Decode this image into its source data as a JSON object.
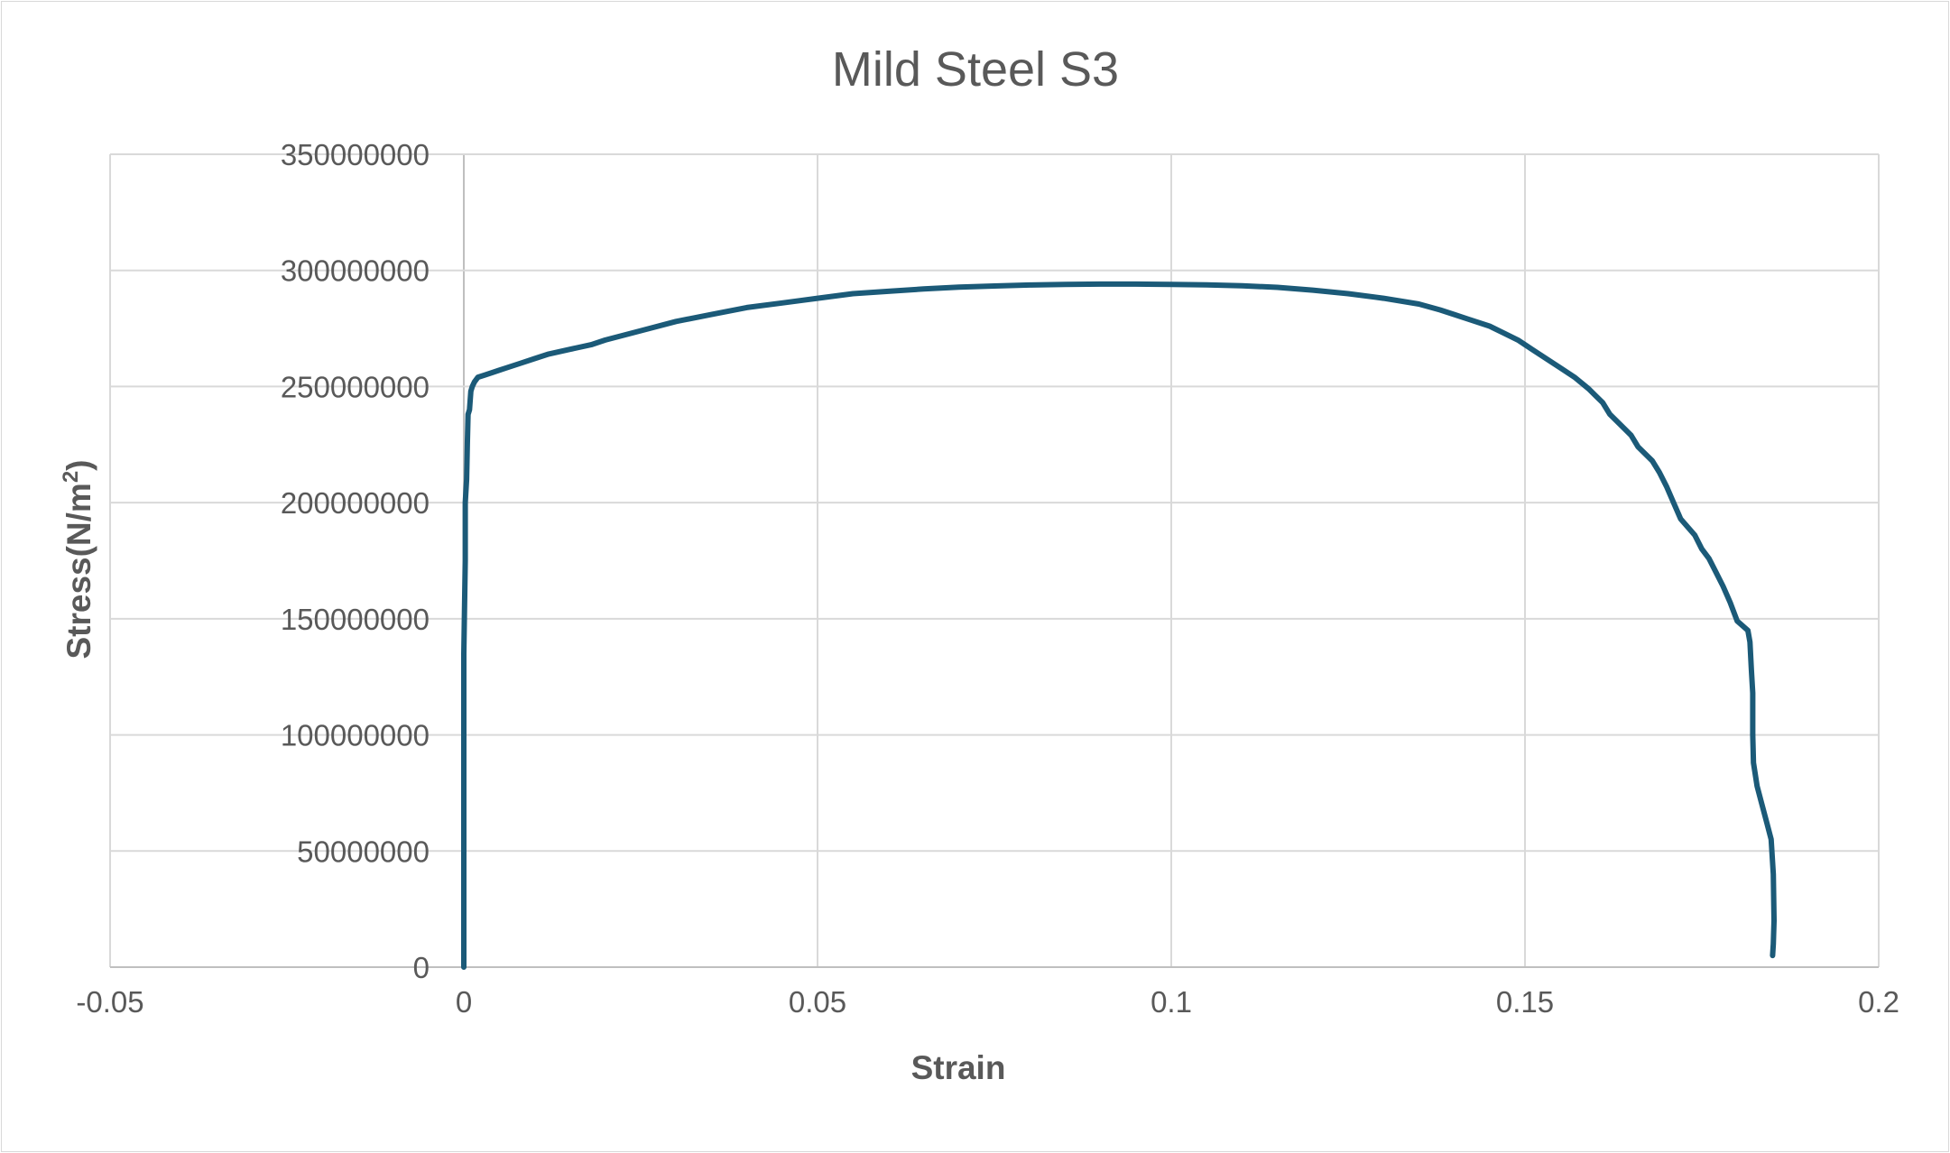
{
  "chart_data": {
    "type": "scatter",
    "title": "Mild Steel S3",
    "xlabel": "Strain",
    "ylabel_main": "Stress(N/m",
    "ylabel_sup": "2",
    "ylabel_end": ")",
    "xlim": [
      -0.05,
      0.2
    ],
    "ylim": [
      0,
      350000000
    ],
    "x_ticks": [
      -0.05,
      0,
      0.05,
      0.1,
      0.15,
      0.2
    ],
    "x_tick_labels": [
      "-0.05",
      "0",
      "0.05",
      "0.1",
      "0.15",
      "0.2"
    ],
    "y_ticks": [
      0,
      50000000,
      100000000,
      150000000,
      200000000,
      250000000,
      300000000,
      350000000
    ],
    "y_tick_labels": [
      "0",
      "50000000",
      "100000000",
      "150000000",
      "200000000",
      "250000000",
      "300000000",
      "350000000"
    ],
    "grid": true,
    "legend": "none",
    "series": [
      {
        "color": "#1b5a78",
        "x": [
          0,
          0,
          0,
          0.0002,
          0.0002,
          0.0004,
          0.0005,
          0.0006,
          0.0008,
          0.001,
          0.0012,
          0.0015,
          0.002,
          0.003,
          0.004,
          0.005,
          0.006,
          0.008,
          0.01,
          0.012,
          0.015,
          0.018,
          0.02,
          0.025,
          0.03,
          0.035,
          0.04,
          0.045,
          0.05,
          0.055,
          0.06,
          0.065,
          0.07,
          0.075,
          0.08,
          0.085,
          0.09,
          0.095,
          0.1,
          0.105,
          0.11,
          0.115,
          0.12,
          0.125,
          0.13,
          0.135,
          0.138,
          0.14,
          0.142,
          0.145,
          0.147,
          0.149,
          0.151,
          0.153,
          0.155,
          0.157,
          0.159,
          0.16,
          0.161,
          0.162,
          0.164,
          0.165,
          0.166,
          0.168,
          0.169,
          0.17,
          0.171,
          0.172,
          0.174,
          0.175,
          0.176,
          0.177,
          0.178,
          0.179,
          0.18,
          0.1815,
          0.1818,
          0.182,
          0.1822,
          0.1822,
          0.1823,
          0.1828,
          0.1835,
          0.1842,
          0.1848,
          0.1851,
          0.1852,
          0.1851,
          0.185
        ],
        "y": [
          0,
          120000000,
          135000000,
          175000000,
          200000000,
          210000000,
          225000000,
          238000000,
          240000000,
          248000000,
          250000000,
          252000000,
          254000000,
          255000000,
          256000000,
          257000000,
          258000000,
          260000000,
          262000000,
          264000000,
          266000000,
          268000000,
          270000000,
          274000000,
          278000000,
          281000000,
          284000000,
          286000000,
          288000000,
          290000000,
          291000000,
          292000000,
          292800000,
          293300000,
          293700000,
          294000000,
          294100000,
          294100000,
          294000000,
          293800000,
          293400000,
          292700000,
          291500000,
          290000000,
          288000000,
          285500000,
          283000000,
          281000000,
          279000000,
          276000000,
          273000000,
          270000000,
          266000000,
          262000000,
          258000000,
          254000000,
          249000000,
          246000000,
          243000000,
          238000000,
          232000000,
          229000000,
          224000000,
          218000000,
          213000000,
          207000000,
          200000000,
          193000000,
          186000000,
          180000000,
          176000000,
          170000000,
          164000000,
          157000000,
          149000000,
          145000000,
          140000000,
          128000000,
          118000000,
          100000000,
          88000000,
          78000000,
          70000000,
          62000000,
          55000000,
          40000000,
          20000000,
          10000000,
          5000000
        ]
      }
    ]
  }
}
